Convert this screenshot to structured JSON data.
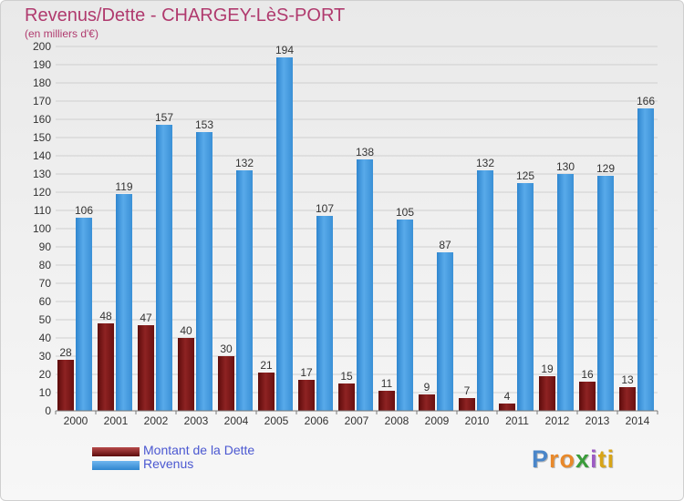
{
  "title": "Revenus/Dette - CHARGEY-LèS-PORT",
  "unit_label": "(en milliers d'€)",
  "legend": {
    "debt_label": "Montant de la Dette",
    "revenue_label": "Revenus"
  },
  "logo": {
    "letters": [
      "P",
      "r",
      "o",
      "x",
      "i",
      "t",
      "i"
    ],
    "colors": [
      "#4a86c9",
      "#e8892b",
      "#e8892b",
      "#3a9c3a",
      "#9c5bc3",
      "#d8a517",
      "#d8a517"
    ]
  },
  "colors": {
    "title": "#b03a6e",
    "debt": "#7a1616",
    "revenue": "#3d97dc",
    "axis_text": "#333333",
    "grid": "#cfcfcf"
  },
  "chart_data": {
    "type": "bar",
    "title": "Revenus/Dette - CHARGEY-LèS-PORT",
    "ylabel": "(en milliers d'€)",
    "xlabel": "",
    "categories": [
      "2000",
      "2001",
      "2002",
      "2003",
      "2004",
      "2005",
      "2006",
      "2007",
      "2008",
      "2009",
      "2010",
      "2011",
      "2012",
      "2013",
      "2014"
    ],
    "series": [
      {
        "name": "Montant de la Dette",
        "values": [
          28,
          48,
          47,
          40,
          30,
          21,
          17,
          15,
          11,
          9,
          7,
          4,
          19,
          16,
          13
        ]
      },
      {
        "name": "Revenus",
        "values": [
          106,
          119,
          157,
          153,
          132,
          194,
          107,
          138,
          105,
          87,
          132,
          125,
          130,
          129,
          166
        ]
      }
    ],
    "ylim": [
      0,
      200
    ],
    "ytick_step": 10,
    "grid": true,
    "legend_position": "bottom-left"
  }
}
